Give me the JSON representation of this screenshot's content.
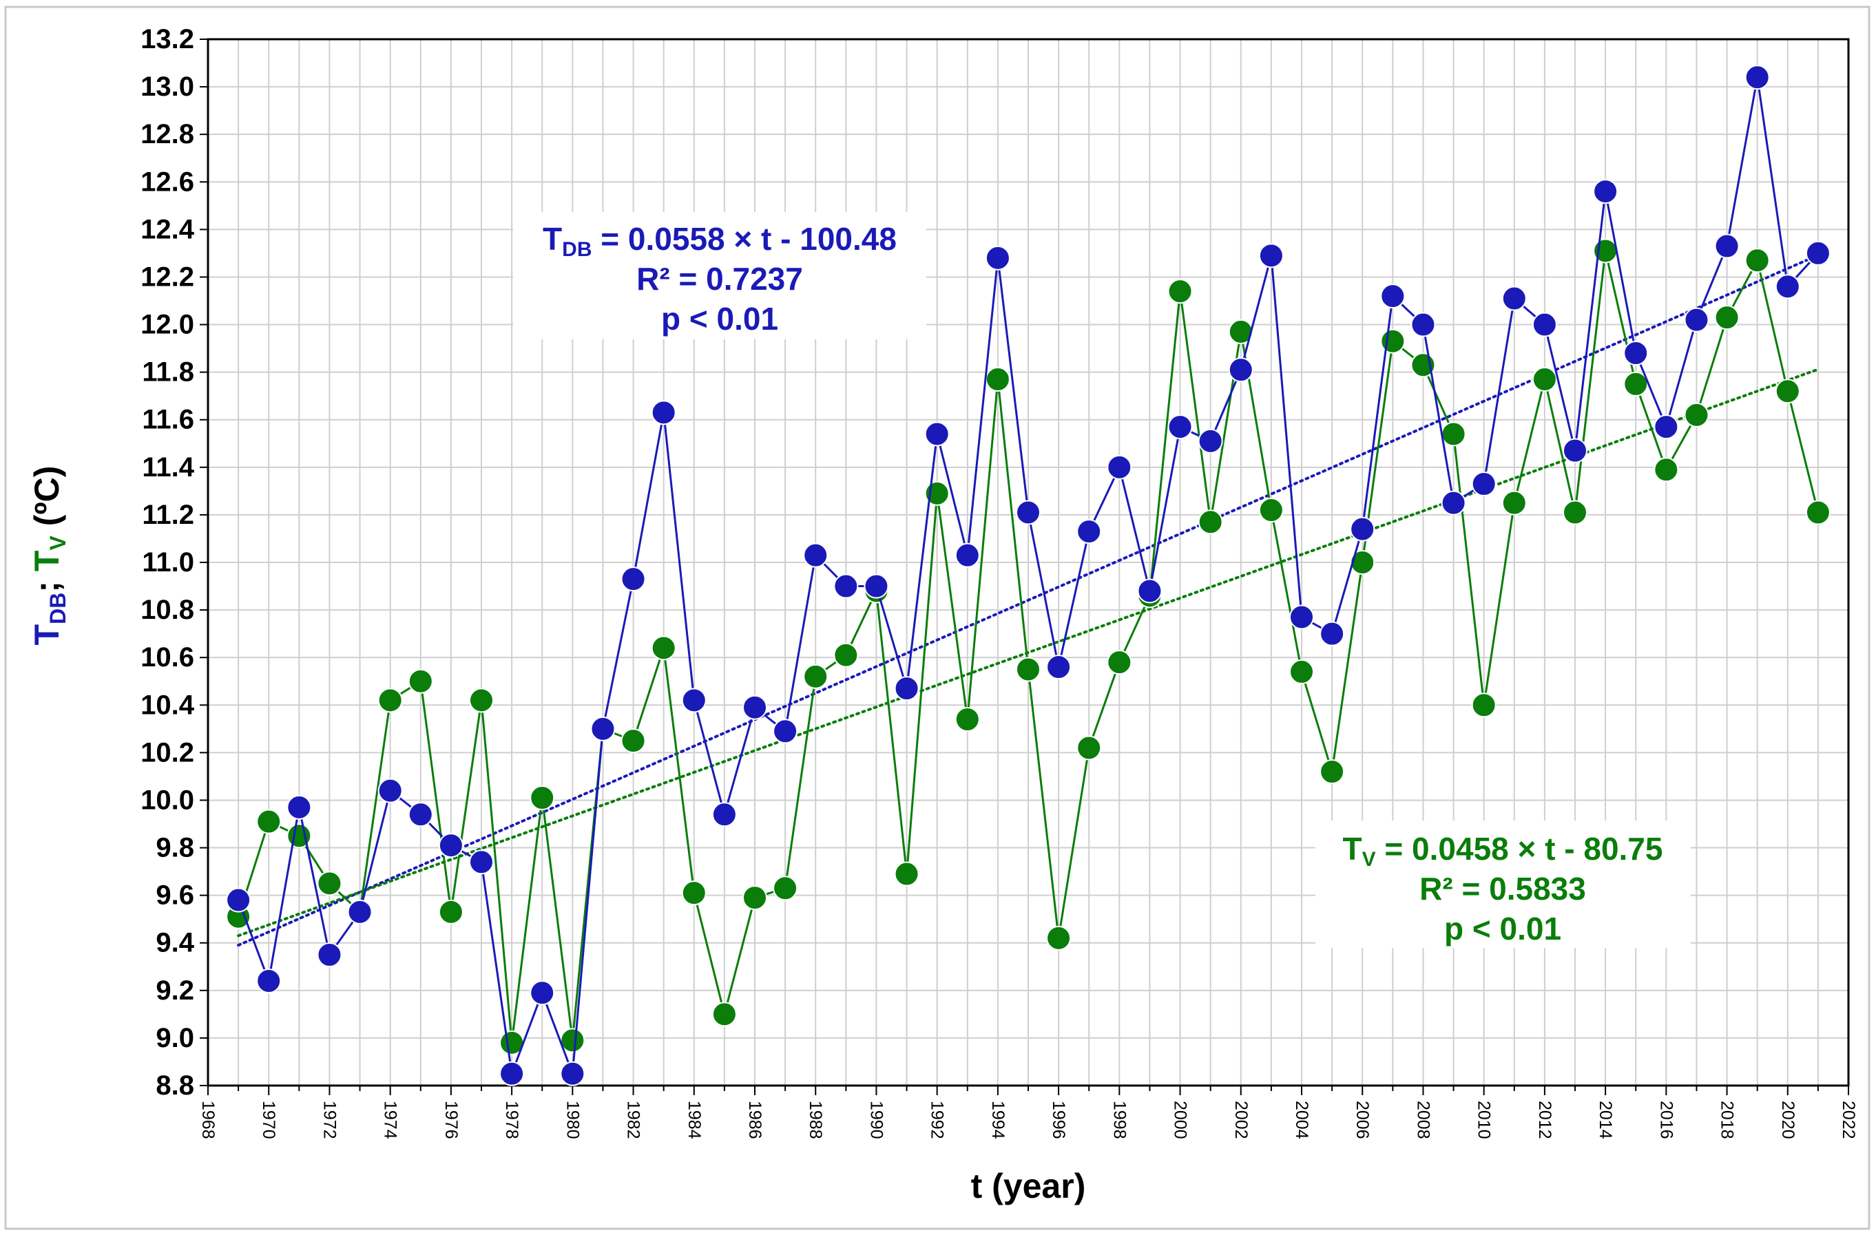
{
  "chart_data": {
    "type": "line",
    "xlabel": "t (year)",
    "ylabel": {
      "db_main": "T",
      "db_sub": "DB",
      "separator": "; ",
      "v_main": "T",
      "v_sub": "V",
      "unit": " (ºC)"
    },
    "xlim": [
      1968,
      2022
    ],
    "ylim": [
      8.8,
      13.2
    ],
    "x_ticks": [
      1968,
      1970,
      1972,
      1974,
      1976,
      1978,
      1980,
      1982,
      1984,
      1986,
      1988,
      1990,
      1992,
      1994,
      1996,
      1998,
      2000,
      2002,
      2004,
      2006,
      2008,
      2010,
      2012,
      2014,
      2016,
      2018,
      2020,
      2022
    ],
    "y_ticks": [
      8.8,
      9.0,
      9.2,
      9.4,
      9.6,
      9.8,
      10.0,
      10.2,
      10.4,
      10.6,
      10.8,
      11.0,
      11.2,
      11.4,
      11.6,
      11.8,
      12.0,
      12.2,
      12.4,
      12.6,
      12.8,
      13.0,
      13.2
    ],
    "grid": true,
    "x": [
      1969,
      1970,
      1971,
      1972,
      1973,
      1974,
      1975,
      1976,
      1977,
      1978,
      1979,
      1980,
      1981,
      1982,
      1983,
      1984,
      1985,
      1986,
      1987,
      1988,
      1989,
      1990,
      1991,
      1992,
      1993,
      1994,
      1995,
      1996,
      1997,
      1998,
      1999,
      2000,
      2001,
      2002,
      2003,
      2004,
      2005,
      2006,
      2007,
      2008,
      2009,
      2010,
      2011,
      2012,
      2013,
      2014,
      2015,
      2016,
      2017,
      2018,
      2019,
      2020,
      2021
    ],
    "series": [
      {
        "name": "T_DB",
        "color": "#1a1ab8",
        "values": [
          9.58,
          9.24,
          9.97,
          9.35,
          9.53,
          10.04,
          9.94,
          9.81,
          9.74,
          8.85,
          9.19,
          8.85,
          10.3,
          10.93,
          11.63,
          10.42,
          9.94,
          10.39,
          10.29,
          11.03,
          10.9,
          10.9,
          10.47,
          11.54,
          11.03,
          12.28,
          11.21,
          10.56,
          11.13,
          11.4,
          10.88,
          11.57,
          11.51,
          11.81,
          12.29,
          10.77,
          10.7,
          11.14,
          12.12,
          12.0,
          11.25,
          11.33,
          12.11,
          12.0,
          11.47,
          12.56,
          11.88,
          11.57,
          12.02,
          12.33,
          13.04,
          12.16,
          12.3
        ],
        "trend": {
          "slope": 0.0558,
          "intercept": -100.48,
          "x_range": [
            1969,
            2021
          ]
        },
        "equation": {
          "lhs_main": "T",
          "lhs_sub": "DB",
          "rhs": " = 0.0558 × t - 100.48"
        },
        "r2": "R² = 0.7237",
        "p": "p < 0.01"
      },
      {
        "name": "T_V",
        "color": "#0a7d0a",
        "values": [
          9.51,
          9.91,
          9.85,
          9.65,
          9.53,
          10.42,
          10.5,
          9.53,
          10.42,
          8.98,
          10.01,
          8.99,
          10.3,
          10.25,
          10.64,
          9.61,
          9.1,
          9.59,
          9.63,
          10.52,
          10.61,
          10.88,
          9.69,
          11.29,
          10.34,
          11.77,
          10.55,
          9.42,
          10.22,
          10.58,
          10.86,
          12.14,
          11.17,
          11.97,
          11.22,
          10.54,
          10.12,
          11.0,
          11.93,
          11.83,
          11.54,
          10.4,
          11.25,
          11.77,
          11.21,
          12.31,
          11.75,
          11.39,
          11.62,
          12.03,
          12.27,
          11.72,
          11.21
        ],
        "trend": {
          "slope": 0.0458,
          "intercept": -80.75,
          "x_range": [
            1969,
            2021
          ]
        },
        "equation": {
          "lhs_main": "T",
          "lhs_sub": "V",
          "rhs": " = 0.0458 × t - 80.75"
        },
        "r2": "R² = 0.5833",
        "p": "p < 0.01"
      }
    ]
  }
}
